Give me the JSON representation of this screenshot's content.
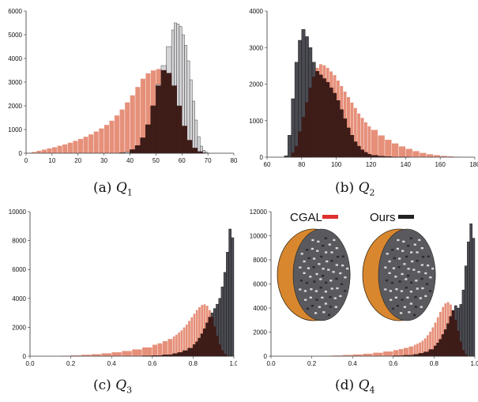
{
  "chart_data": [
    {
      "type": "bar",
      "id": "q1",
      "caption_prefix": "(a)",
      "caption_symbol": "Q",
      "caption_sub": "1",
      "xlim": [
        0,
        80
      ],
      "ylim": [
        0,
        6000
      ],
      "xticks": [
        "0",
        "10",
        "20",
        "30",
        "40",
        "50",
        "60",
        "70",
        "80"
      ],
      "yticks": [
        "0",
        "1000",
        "2000",
        "3000",
        "4000",
        "5000",
        "6000"
      ],
      "bin_width": 1,
      "series": [
        {
          "color": "#e6907a",
          "edge": "#ffffff",
          "x": [
            0,
            2,
            4,
            6,
            8,
            10,
            12,
            14,
            16,
            18,
            20,
            22,
            24,
            26,
            28,
            30,
            32,
            34,
            36,
            38,
            40,
            42,
            44,
            46,
            48,
            50,
            52,
            54,
            56,
            58,
            60,
            62,
            64,
            66,
            68
          ],
          "values": [
            20,
            60,
            110,
            160,
            210,
            260,
            320,
            380,
            450,
            530,
            610,
            700,
            800,
            920,
            1050,
            1200,
            1380,
            1600,
            1850,
            2150,
            2450,
            2800,
            3150,
            3380,
            3500,
            3560,
            3580,
            3380,
            2850,
            2000,
            1150,
            550,
            220,
            70,
            15
          ]
        },
        {
          "color": "#d5d5d8",
          "edge": "#222222",
          "x": [
            36,
            38,
            40,
            42,
            44,
            46,
            48,
            50,
            52,
            54,
            56,
            57,
            58,
            59,
            60,
            61,
            62,
            63,
            64,
            65,
            66,
            67,
            68,
            69
          ],
          "values": [
            20,
            60,
            150,
            320,
            650,
            1200,
            2000,
            2900,
            3700,
            4500,
            5200,
            5500,
            5450,
            5350,
            5000,
            4550,
            3900,
            3100,
            2200,
            1400,
            700,
            300,
            120,
            40
          ]
        },
        {
          "color": "#3e1c18",
          "edge": "#3e1c18",
          "x": [
            40,
            42,
            44,
            46,
            48,
            50,
            52,
            54,
            56,
            58,
            60,
            62,
            64,
            66,
            68
          ],
          "values": [
            150,
            320,
            650,
            1200,
            2000,
            2850,
            3500,
            3380,
            2850,
            2000,
            1150,
            550,
            220,
            70,
            15
          ]
        }
      ]
    },
    {
      "type": "bar",
      "id": "q2",
      "caption_prefix": "(b)",
      "caption_symbol": "Q",
      "caption_sub": "2",
      "xlim": [
        60,
        180
      ],
      "ylim": [
        0,
        4000
      ],
      "xticks": [
        "60",
        "80",
        "100",
        "120",
        "140",
        "160",
        "180"
      ],
      "yticks": [
        "0",
        "1000",
        "2000",
        "3000",
        "4000"
      ],
      "bin_width": 2,
      "series": [
        {
          "color": "#e6907a",
          "edge": "#ffffff",
          "x": [
            74,
            76,
            78,
            80,
            82,
            84,
            86,
            88,
            90,
            92,
            94,
            96,
            98,
            100,
            102,
            104,
            106,
            108,
            110,
            112,
            114,
            116,
            118,
            120,
            124,
            128,
            132,
            136,
            140,
            144,
            148,
            152,
            156,
            160,
            164,
            168,
            172
          ],
          "values": [
            120,
            300,
            700,
            1100,
            1500,
            1900,
            2200,
            2450,
            2550,
            2520,
            2450,
            2350,
            2250,
            2100,
            1950,
            1800,
            1650,
            1500,
            1350,
            1200,
            1080,
            960,
            850,
            750,
            600,
            480,
            380,
            300,
            230,
            170,
            120,
            85,
            60,
            40,
            25,
            15,
            8
          ]
        },
        {
          "color": "#4a4a52",
          "edge": "#111111",
          "x": [
            70,
            72,
            74,
            76,
            78,
            80,
            82,
            84,
            86,
            88,
            90,
            92,
            94,
            96,
            98,
            100,
            102,
            104,
            106,
            108,
            110,
            112,
            114,
            116,
            118,
            120,
            124,
            128,
            132,
            136,
            140
          ],
          "values": [
            40,
            600,
            1600,
            2600,
            3200,
            3500,
            3300,
            3000,
            2600,
            2350,
            2250,
            2150,
            2050,
            1900,
            1750,
            1550,
            1300,
            1050,
            800,
            600,
            420,
            300,
            200,
            130,
            80,
            50,
            25,
            12,
            6,
            3,
            1
          ]
        },
        {
          "color": "#3e1c18",
          "edge": "#3e1c18",
          "x": [
            74,
            76,
            78,
            80,
            82,
            84,
            86,
            88,
            90,
            92,
            94,
            96,
            98,
            100,
            102,
            104,
            106,
            108,
            110,
            112,
            114,
            116,
            118,
            120,
            124,
            128,
            132,
            136,
            140
          ],
          "values": [
            120,
            300,
            700,
            1100,
            1500,
            1900,
            2200,
            2350,
            2250,
            2150,
            2050,
            1900,
            1750,
            1550,
            1300,
            1050,
            800,
            600,
            420,
            300,
            200,
            130,
            80,
            50,
            25,
            12,
            6,
            3,
            1
          ]
        }
      ]
    },
    {
      "type": "bar",
      "id": "q3",
      "caption_prefix": "(c)",
      "caption_symbol": "Q",
      "caption_sub": "3",
      "xlim": [
        0,
        1
      ],
      "ylim": [
        0,
        10000
      ],
      "xticks": [
        "0.0",
        "0.2",
        "0.4",
        "0.6",
        "0.8",
        "1.0"
      ],
      "yticks": [
        "0",
        "2000",
        "4000",
        "6000",
        "8000",
        "10000"
      ],
      "bin_width": 0.0125,
      "series": [
        {
          "color": "#e6907a",
          "edge": "#ffffff",
          "x": [
            0.1,
            0.15,
            0.2,
            0.25,
            0.3,
            0.35,
            0.4,
            0.45,
            0.5,
            0.55,
            0.6,
            0.625,
            0.65,
            0.675,
            0.7,
            0.7125,
            0.725,
            0.7375,
            0.75,
            0.7625,
            0.775,
            0.7875,
            0.8,
            0.8125,
            0.825,
            0.8375,
            0.85,
            0.8625,
            0.875,
            0.8875,
            0.9,
            0.9125,
            0.925,
            0.9375,
            0.95,
            0.9625
          ],
          "values": [
            20,
            40,
            70,
            110,
            150,
            210,
            280,
            370,
            480,
            620,
            800,
            900,
            1050,
            1200,
            1380,
            1500,
            1650,
            1800,
            2000,
            2200,
            2450,
            2700,
            2950,
            3200,
            3400,
            3550,
            3600,
            3500,
            3200,
            2700,
            2050,
            1400,
            800,
            400,
            150,
            40
          ]
        },
        {
          "color": "#4a4a52",
          "edge": "#111111",
          "x": [
            0.55,
            0.6,
            0.65,
            0.7,
            0.725,
            0.75,
            0.775,
            0.8,
            0.8125,
            0.825,
            0.8375,
            0.85,
            0.8625,
            0.875,
            0.8875,
            0.9,
            0.9125,
            0.925,
            0.9375,
            0.95,
            0.9625,
            0.975,
            0.9875
          ],
          "values": [
            20,
            40,
            90,
            180,
            260,
            380,
            550,
            800,
            1000,
            1250,
            1550,
            1900,
            2300,
            2700,
            3000,
            3300,
            3600,
            4000,
            4800,
            5800,
            7200,
            8800,
            8200
          ]
        },
        {
          "color": "#3e1c18",
          "edge": "#3e1c18",
          "x": [
            0.55,
            0.6,
            0.65,
            0.7,
            0.725,
            0.75,
            0.775,
            0.8,
            0.8125,
            0.825,
            0.8375,
            0.85,
            0.8625,
            0.875,
            0.8875,
            0.9,
            0.9125,
            0.925,
            0.9375,
            0.95,
            0.9625
          ],
          "values": [
            20,
            40,
            90,
            180,
            260,
            380,
            550,
            800,
            1000,
            1250,
            1550,
            1900,
            2300,
            2700,
            2700,
            2050,
            1400,
            800,
            400,
            150,
            40
          ]
        }
      ]
    },
    {
      "type": "bar",
      "id": "q4",
      "caption_prefix": "(d)",
      "caption_symbol": "Q",
      "caption_sub": "4",
      "xlim": [
        0,
        1
      ],
      "ylim": [
        0,
        12000
      ],
      "xticks": [
        "0.0",
        "0.2",
        "0.4",
        "0.6",
        "0.8",
        "1.0"
      ],
      "yticks": [
        "0",
        "2000",
        "4000",
        "6000",
        "8000",
        "10000",
        "12000"
      ],
      "bin_width": 0.0125,
      "legend": [
        {
          "label": "CGAL",
          "color": "#e03030"
        },
        {
          "label": "Ours",
          "color": "#222222"
        }
      ],
      "series": [
        {
          "color": "#e6907a",
          "edge": "#ffffff",
          "x": [
            0.2,
            0.25,
            0.3,
            0.35,
            0.4,
            0.45,
            0.5,
            0.55,
            0.6,
            0.625,
            0.65,
            0.675,
            0.7,
            0.7125,
            0.725,
            0.7375,
            0.75,
            0.7625,
            0.775,
            0.7875,
            0.8,
            0.8125,
            0.825,
            0.8375,
            0.85,
            0.8625,
            0.875,
            0.8875,
            0.9,
            0.9125,
            0.925,
            0.9375,
            0.95
          ],
          "values": [
            20,
            40,
            70,
            110,
            160,
            220,
            300,
            400,
            520,
            600,
            700,
            820,
            960,
            1050,
            1150,
            1300,
            1500,
            1750,
            2050,
            2400,
            2800,
            3250,
            3700,
            4100,
            4400,
            4500,
            4300,
            3800,
            3000,
            2100,
            1200,
            500,
            150
          ]
        },
        {
          "color": "#4a4a52",
          "edge": "#111111",
          "x": [
            0.6,
            0.65,
            0.7,
            0.725,
            0.75,
            0.775,
            0.8,
            0.8125,
            0.825,
            0.8375,
            0.85,
            0.8625,
            0.875,
            0.8875,
            0.9,
            0.9125,
            0.925,
            0.9375,
            0.95,
            0.9625,
            0.975,
            0.9875
          ],
          "values": [
            30,
            70,
            150,
            230,
            350,
            550,
            850,
            1100,
            1400,
            1800,
            2200,
            2700,
            3300,
            3800,
            4200,
            4000,
            4300,
            5500,
            7500,
            9500,
            11000,
            9800
          ]
        },
        {
          "color": "#3e1c18",
          "edge": "#3e1c18",
          "x": [
            0.6,
            0.65,
            0.7,
            0.725,
            0.75,
            0.775,
            0.8,
            0.8125,
            0.825,
            0.8375,
            0.85,
            0.8625,
            0.875,
            0.8875,
            0.9,
            0.9125,
            0.925,
            0.9375,
            0.95
          ],
          "values": [
            30,
            70,
            150,
            230,
            350,
            550,
            850,
            1100,
            1400,
            1800,
            2200,
            2700,
            3300,
            3800,
            3000,
            2100,
            1200,
            500,
            150
          ]
        }
      ]
    }
  ]
}
